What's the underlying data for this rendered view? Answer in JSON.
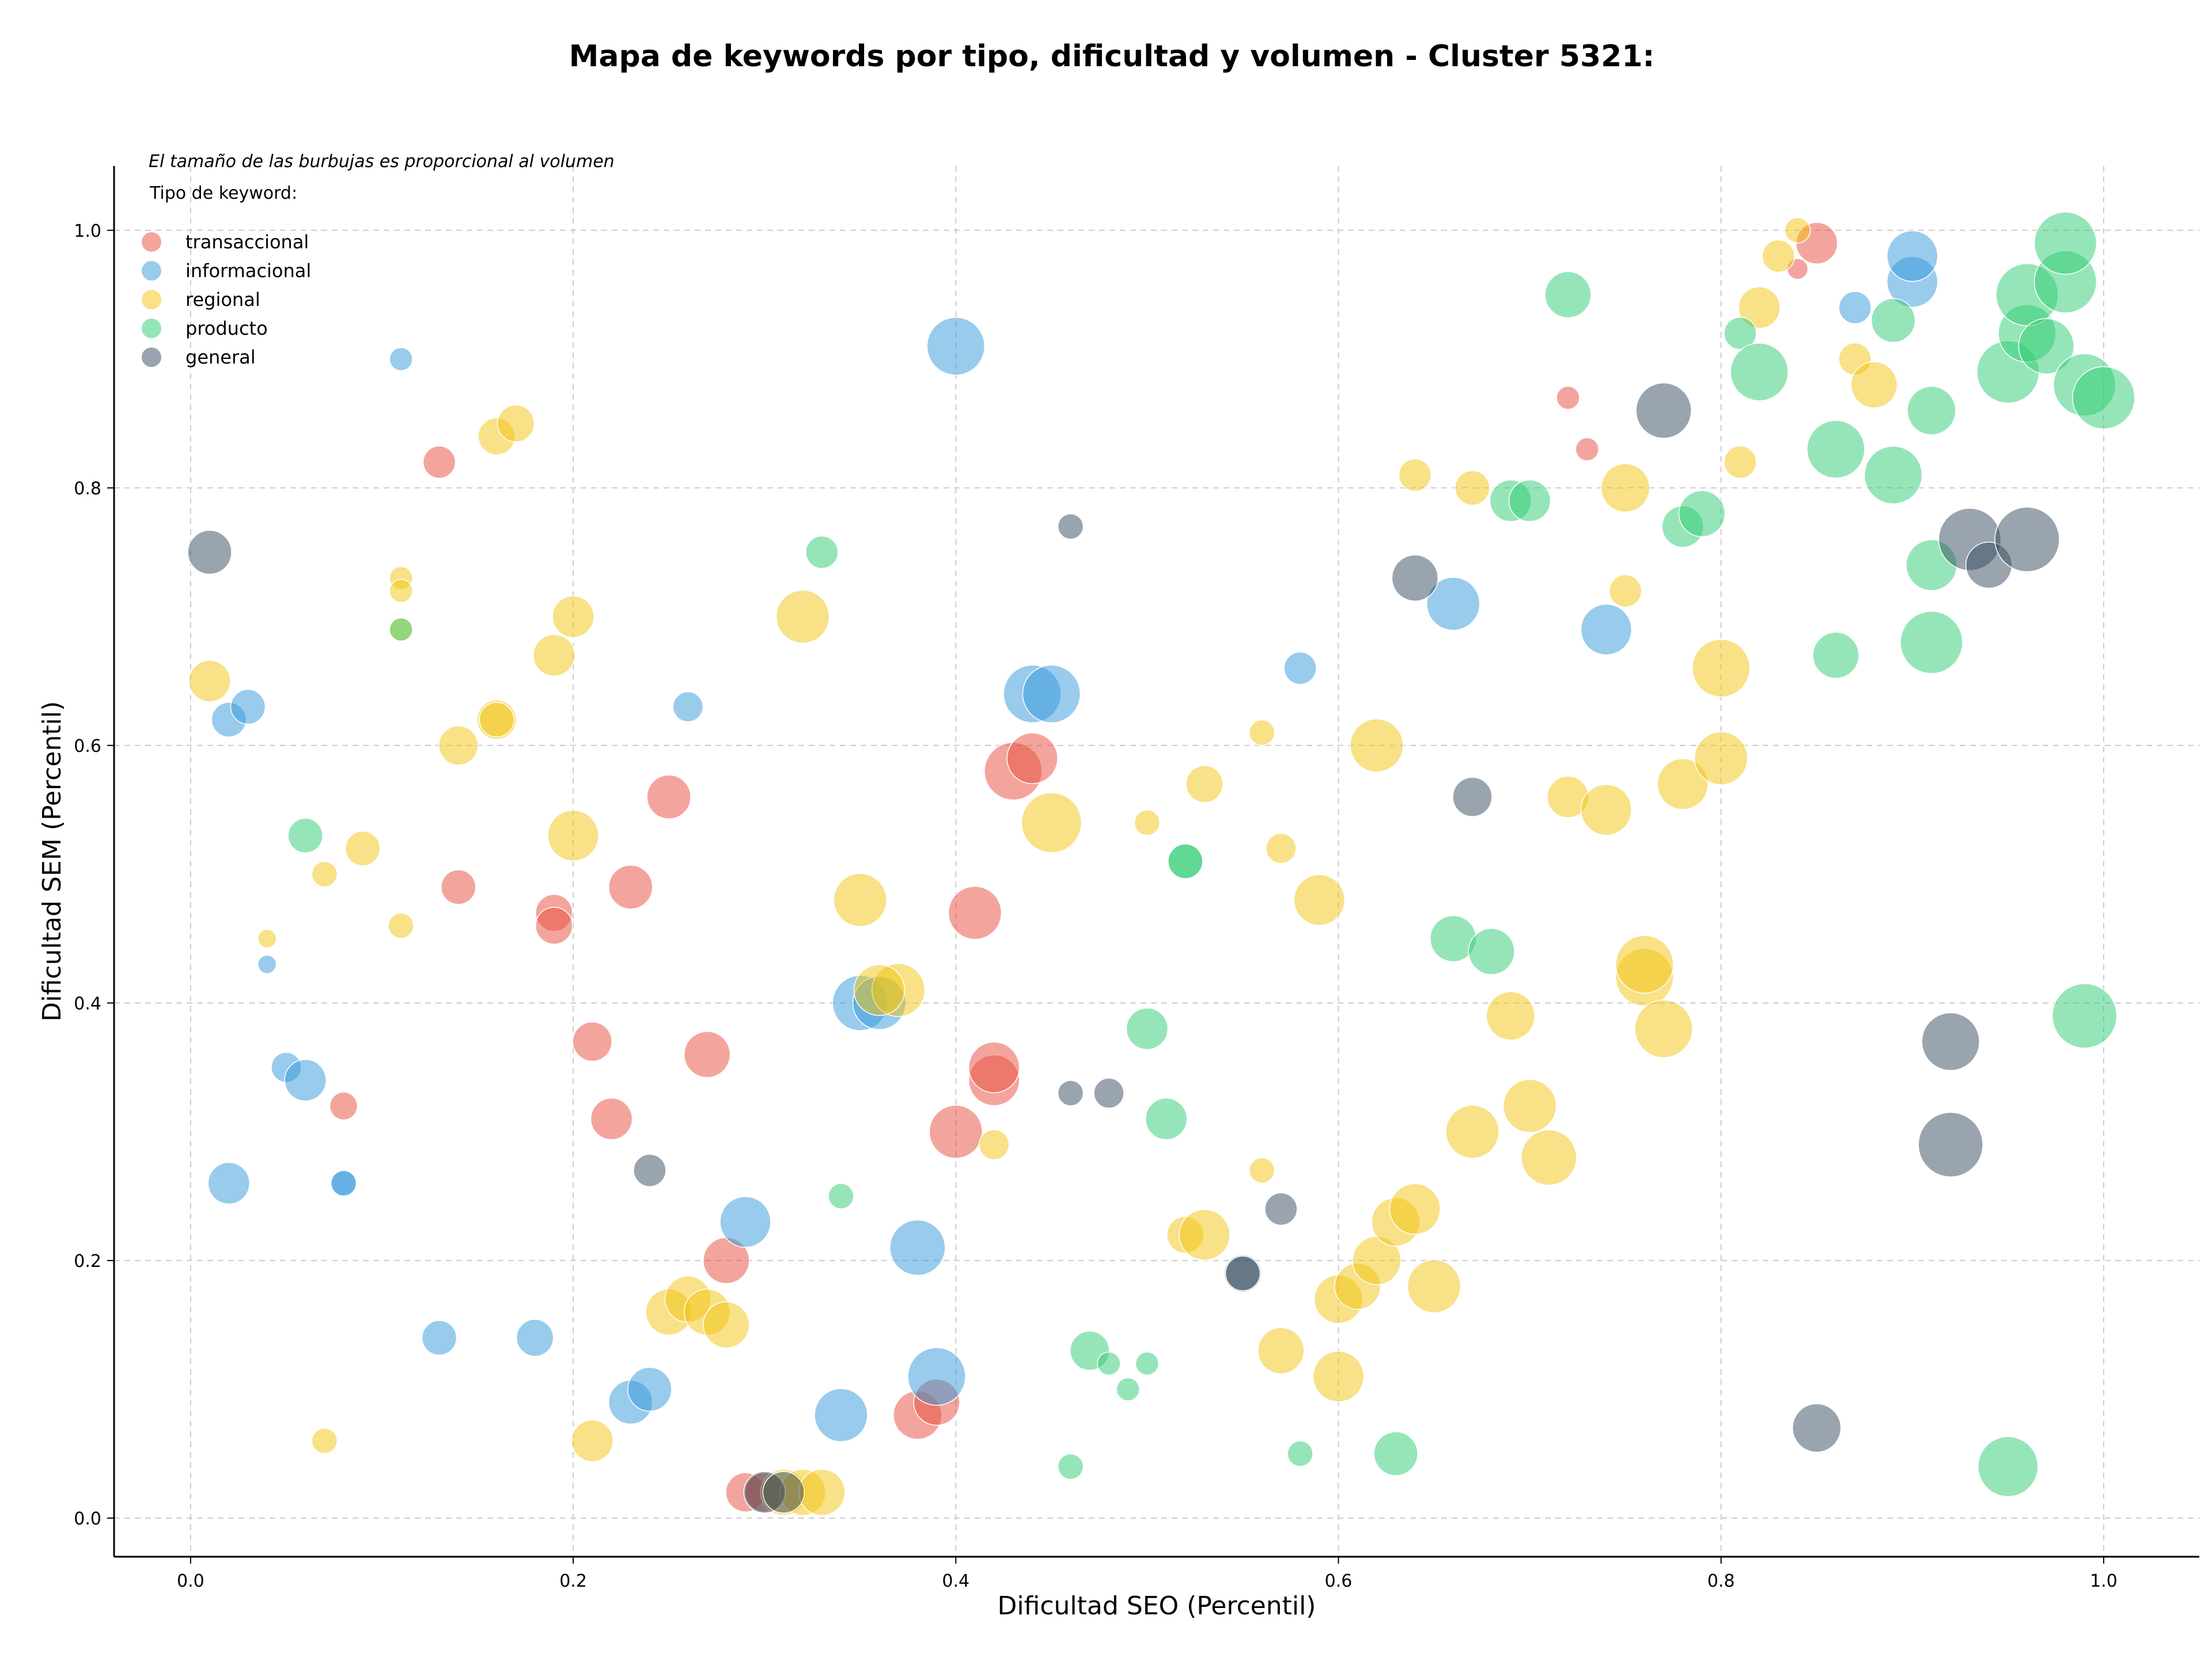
{
  "chart_data": {
    "type": "scatter",
    "title": "Mapa de keywords por tipo, dificultad y volumen - Cluster 5321:",
    "xlabel": "Dificultad SEO (Percentil)",
    "ylabel": "Dificultad SEM (Percentil)",
    "xlim": [
      -0.04,
      1.05
    ],
    "ylim": [
      -0.03,
      1.05
    ],
    "x_ticks": [
      "0.0",
      "0.2",
      "0.4",
      "0.6",
      "0.8",
      "1.0"
    ],
    "y_ticks": [
      "0.0",
      "0.2",
      "0.4",
      "0.6",
      "0.8",
      "1.0"
    ],
    "grid": true,
    "legend_placement": "top-left",
    "legend_note": "El tamaño de las burbujas es proporcional al volumen",
    "legend_title": "Tipo de keyword:",
    "series": [
      {
        "name": "transaccional",
        "color": "#e74c3c",
        "points": [
          [
            0.13,
            0.82,
            28
          ],
          [
            0.25,
            0.56,
            38
          ],
          [
            0.14,
            0.49,
            30
          ],
          [
            0.19,
            0.47,
            32
          ],
          [
            0.19,
            0.46,
            32
          ],
          [
            0.23,
            0.49,
            38
          ],
          [
            0.21,
            0.37,
            34
          ],
          [
            0.22,
            0.31,
            36
          ],
          [
            0.27,
            0.36,
            40
          ],
          [
            0.08,
            0.32,
            24
          ],
          [
            0.28,
            0.2,
            40
          ],
          [
            0.41,
            0.47,
            46
          ],
          [
            0.43,
            0.58,
            50
          ],
          [
            0.44,
            0.59,
            44
          ],
          [
            0.42,
            0.34,
            44
          ],
          [
            0.42,
            0.35,
            44
          ],
          [
            0.4,
            0.3,
            46
          ],
          [
            0.38,
            0.08,
            42
          ],
          [
            0.39,
            0.09,
            40
          ],
          [
            0.29,
            0.02,
            34
          ],
          [
            0.3,
            0.02,
            34
          ],
          [
            0.72,
            0.87,
            20
          ],
          [
            0.73,
            0.83,
            20
          ],
          [
            0.85,
            0.99,
            36
          ],
          [
            0.84,
            0.97,
            18
          ]
        ]
      },
      {
        "name": "informacional",
        "color": "#3498db",
        "points": [
          [
            0.11,
            0.9,
            20
          ],
          [
            0.02,
            0.62,
            30
          ],
          [
            0.03,
            0.63,
            30
          ],
          [
            0.26,
            0.63,
            26
          ],
          [
            0.04,
            0.43,
            16
          ],
          [
            0.05,
            0.35,
            26
          ],
          [
            0.06,
            0.34,
            36
          ],
          [
            0.02,
            0.26,
            36
          ],
          [
            0.08,
            0.26,
            22
          ],
          [
            0.08,
            0.26,
            22
          ],
          [
            0.13,
            0.14,
            30
          ],
          [
            0.18,
            0.14,
            32
          ],
          [
            0.23,
            0.09,
            38
          ],
          [
            0.24,
            0.1,
            38
          ],
          [
            0.29,
            0.23,
            44
          ],
          [
            0.34,
            0.08,
            46
          ],
          [
            0.38,
            0.21,
            48
          ],
          [
            0.39,
            0.11,
            50
          ],
          [
            0.35,
            0.4,
            48
          ],
          [
            0.36,
            0.4,
            46
          ],
          [
            0.4,
            0.91,
            50
          ],
          [
            0.44,
            0.64,
            50
          ],
          [
            0.45,
            0.64,
            50
          ],
          [
            0.58,
            0.66,
            28
          ],
          [
            0.66,
            0.71,
            46
          ],
          [
            0.74,
            0.69,
            44
          ],
          [
            0.87,
            0.94,
            28
          ],
          [
            0.9,
            0.96,
            44
          ],
          [
            0.9,
            0.98,
            44
          ]
        ]
      },
      {
        "name": "regional",
        "color": "#f1c40f",
        "points": [
          [
            0.16,
            0.84,
            32
          ],
          [
            0.17,
            0.85,
            32
          ],
          [
            0.11,
            0.73,
            20
          ],
          [
            0.11,
            0.72,
            20
          ],
          [
            0.11,
            0.69,
            20
          ],
          [
            0.2,
            0.7,
            36
          ],
          [
            0.19,
            0.67,
            36
          ],
          [
            0.01,
            0.65,
            36
          ],
          [
            0.14,
            0.6,
            34
          ],
          [
            0.16,
            0.62,
            34
          ],
          [
            0.16,
            0.62,
            30
          ],
          [
            0.2,
            0.53,
            44
          ],
          [
            0.09,
            0.52,
            30
          ],
          [
            0.07,
            0.5,
            22
          ],
          [
            0.04,
            0.45,
            16
          ],
          [
            0.11,
            0.46,
            22
          ],
          [
            0.32,
            0.7,
            46
          ],
          [
            0.35,
            0.48,
            46
          ],
          [
            0.37,
            0.41,
            46
          ],
          [
            0.36,
            0.41,
            44
          ],
          [
            0.45,
            0.54,
            52
          ],
          [
            0.42,
            0.29,
            26
          ],
          [
            0.25,
            0.16,
            40
          ],
          [
            0.26,
            0.17,
            40
          ],
          [
            0.27,
            0.16,
            40
          ],
          [
            0.28,
            0.15,
            40
          ],
          [
            0.21,
            0.06,
            36
          ],
          [
            0.07,
            0.06,
            22
          ],
          [
            0.31,
            0.02,
            40
          ],
          [
            0.32,
            0.02,
            40
          ],
          [
            0.33,
            0.02,
            40
          ],
          [
            0.5,
            0.54,
            22
          ],
          [
            0.53,
            0.57,
            32
          ],
          [
            0.56,
            0.61,
            22
          ],
          [
            0.57,
            0.52,
            26
          ],
          [
            0.59,
            0.48,
            44
          ],
          [
            0.62,
            0.6,
            46
          ],
          [
            0.56,
            0.27,
            22
          ],
          [
            0.52,
            0.22,
            32
          ],
          [
            0.53,
            0.22,
            44
          ],
          [
            0.57,
            0.13,
            40
          ],
          [
            0.6,
            0.17,
            42
          ],
          [
            0.6,
            0.11,
            44
          ],
          [
            0.61,
            0.18,
            40
          ],
          [
            0.62,
            0.2,
            42
          ],
          [
            0.63,
            0.23,
            42
          ],
          [
            0.64,
            0.24,
            44
          ],
          [
            0.65,
            0.18,
            46
          ],
          [
            0.64,
            0.81,
            28
          ],
          [
            0.67,
            0.8,
            30
          ],
          [
            0.67,
            0.3,
            46
          ],
          [
            0.69,
            0.39,
            42
          ],
          [
            0.7,
            0.32,
            46
          ],
          [
            0.71,
            0.28,
            48
          ],
          [
            0.72,
            0.56,
            36
          ],
          [
            0.74,
            0.55,
            44
          ],
          [
            0.75,
            0.8,
            42
          ],
          [
            0.75,
            0.72,
            28
          ],
          [
            0.76,
            0.42,
            50
          ],
          [
            0.76,
            0.43,
            50
          ],
          [
            0.77,
            0.38,
            50
          ],
          [
            0.78,
            0.57,
            44
          ],
          [
            0.8,
            0.59,
            46
          ],
          [
            0.8,
            0.66,
            50
          ],
          [
            0.81,
            0.82,
            28
          ],
          [
            0.82,
            0.94,
            36
          ],
          [
            0.83,
            0.98,
            28
          ],
          [
            0.84,
            1.0,
            22
          ],
          [
            0.87,
            0.9,
            28
          ],
          [
            0.88,
            0.88,
            40
          ]
        ]
      },
      {
        "name": "producto",
        "color": "#2ecc71",
        "points": [
          [
            0.33,
            0.75,
            28
          ],
          [
            0.11,
            0.69,
            20
          ],
          [
            0.06,
            0.53,
            30
          ],
          [
            0.34,
            0.25,
            22
          ],
          [
            0.52,
            0.51,
            30
          ],
          [
            0.52,
            0.51,
            30
          ],
          [
            0.5,
            0.38,
            36
          ],
          [
            0.51,
            0.31,
            36
          ],
          [
            0.47,
            0.13,
            34
          ],
          [
            0.48,
            0.12,
            20
          ],
          [
            0.49,
            0.1,
            20
          ],
          [
            0.5,
            0.12,
            20
          ],
          [
            0.46,
            0.04,
            22
          ],
          [
            0.58,
            0.05,
            22
          ],
          [
            0.63,
            0.05,
            38
          ],
          [
            0.66,
            0.45,
            40
          ],
          [
            0.68,
            0.44,
            40
          ],
          [
            0.69,
            0.79,
            36
          ],
          [
            0.7,
            0.79,
            36
          ],
          [
            0.72,
            0.95,
            40
          ],
          [
            0.78,
            0.77,
            36
          ],
          [
            0.79,
            0.78,
            40
          ],
          [
            0.81,
            0.92,
            28
          ],
          [
            0.82,
            0.89,
            50
          ],
          [
            0.86,
            0.83,
            50
          ],
          [
            0.89,
            0.93,
            38
          ],
          [
            0.89,
            0.81,
            50
          ],
          [
            0.86,
            0.67,
            40
          ],
          [
            0.91,
            0.86,
            42
          ],
          [
            0.91,
            0.74,
            44
          ],
          [
            0.91,
            0.68,
            54
          ],
          [
            0.95,
            0.89,
            54
          ],
          [
            0.96,
            0.92,
            50
          ],
          [
            0.96,
            0.95,
            54
          ],
          [
            0.97,
            0.91,
            48
          ],
          [
            0.98,
            0.96,
            54
          ],
          [
            0.98,
            0.99,
            54
          ],
          [
            0.99,
            0.88,
            54
          ],
          [
            1.0,
            0.87,
            54
          ],
          [
            0.99,
            0.39,
            56
          ],
          [
            0.95,
            0.04,
            52
          ]
        ]
      },
      {
        "name": "general",
        "color": "#34495e",
        "points": [
          [
            0.01,
            0.75,
            38
          ],
          [
            0.46,
            0.77,
            22
          ],
          [
            0.24,
            0.27,
            28
          ],
          [
            0.46,
            0.33,
            22
          ],
          [
            0.48,
            0.33,
            26
          ],
          [
            0.55,
            0.19,
            32
          ],
          [
            0.55,
            0.19,
            30
          ],
          [
            0.57,
            0.24,
            28
          ],
          [
            0.3,
            0.02,
            36
          ],
          [
            0.31,
            0.02,
            36
          ],
          [
            0.64,
            0.73,
            40
          ],
          [
            0.67,
            0.56,
            34
          ],
          [
            0.77,
            0.86,
            48
          ],
          [
            0.93,
            0.76,
            54
          ],
          [
            0.94,
            0.74,
            40
          ],
          [
            0.96,
            0.76,
            56
          ],
          [
            0.92,
            0.37,
            50
          ],
          [
            0.92,
            0.29,
            56
          ],
          [
            0.85,
            0.07,
            42
          ]
        ]
      }
    ]
  }
}
